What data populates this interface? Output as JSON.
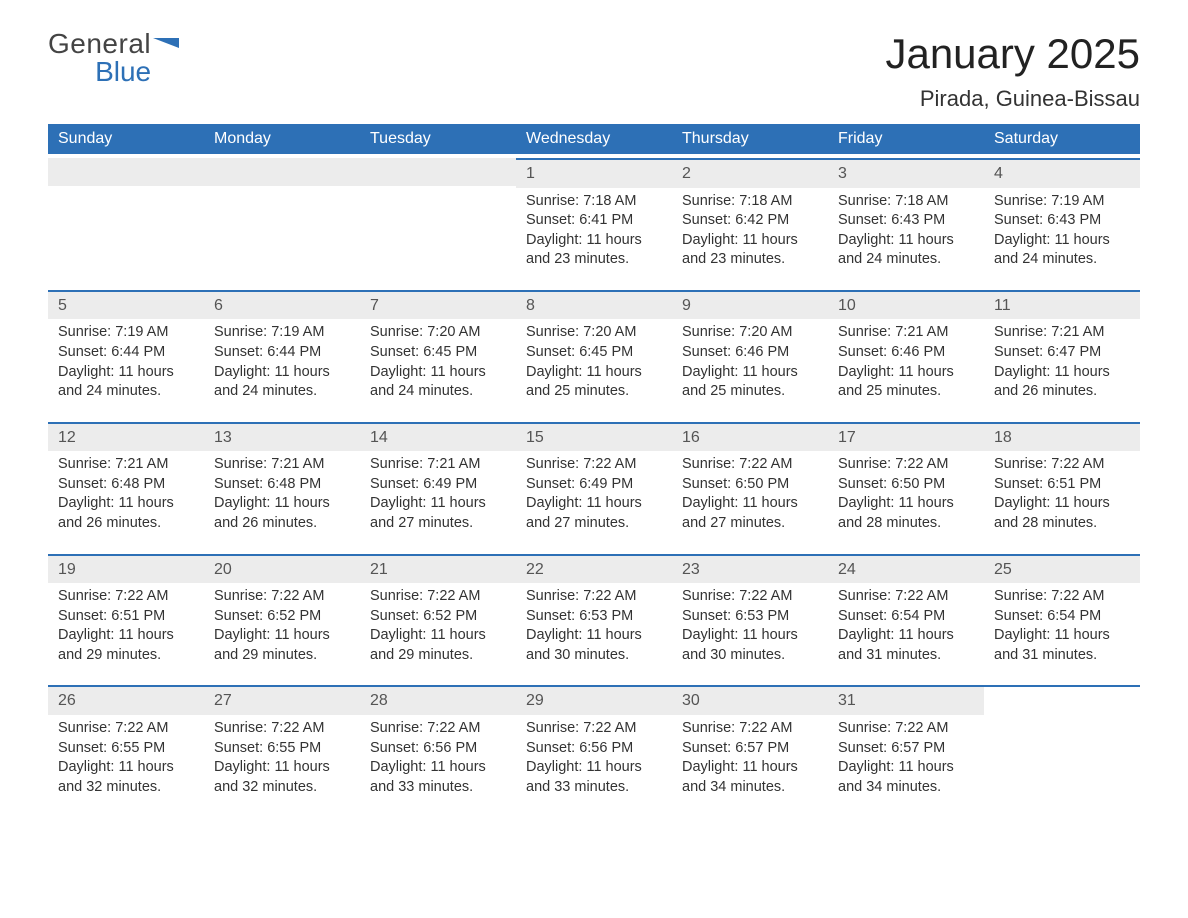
{
  "brand": {
    "line1": "General",
    "line2": "Blue",
    "color1": "#444444",
    "color2": "#2d70b6"
  },
  "title": "January 2025",
  "location": "Pirada, Guinea-Bissau",
  "colors": {
    "header_bg": "#2d70b6",
    "header_fg": "#ffffff",
    "strip_bg": "#ececec",
    "strip_border": "#2d70b6",
    "text": "#333333",
    "page_bg": "#ffffff"
  },
  "typography": {
    "title_fontsize": 42,
    "location_fontsize": 22,
    "dayheader_fontsize": 16,
    "daynum_fontsize": 16,
    "body_fontsize": 14.5
  },
  "layout": {
    "columns": 7,
    "first_weekday_index": 3,
    "days_in_month": 31
  },
  "weekdays": [
    "Sunday",
    "Monday",
    "Tuesday",
    "Wednesday",
    "Thursday",
    "Friday",
    "Saturday"
  ],
  "days": [
    {
      "n": 1,
      "sunrise": "7:18 AM",
      "sunset": "6:41 PM",
      "daylight": "11 hours and 23 minutes."
    },
    {
      "n": 2,
      "sunrise": "7:18 AM",
      "sunset": "6:42 PM",
      "daylight": "11 hours and 23 minutes."
    },
    {
      "n": 3,
      "sunrise": "7:18 AM",
      "sunset": "6:43 PM",
      "daylight": "11 hours and 24 minutes."
    },
    {
      "n": 4,
      "sunrise": "7:19 AM",
      "sunset": "6:43 PM",
      "daylight": "11 hours and 24 minutes."
    },
    {
      "n": 5,
      "sunrise": "7:19 AM",
      "sunset": "6:44 PM",
      "daylight": "11 hours and 24 minutes."
    },
    {
      "n": 6,
      "sunrise": "7:19 AM",
      "sunset": "6:44 PM",
      "daylight": "11 hours and 24 minutes."
    },
    {
      "n": 7,
      "sunrise": "7:20 AM",
      "sunset": "6:45 PM",
      "daylight": "11 hours and 24 minutes."
    },
    {
      "n": 8,
      "sunrise": "7:20 AM",
      "sunset": "6:45 PM",
      "daylight": "11 hours and 25 minutes."
    },
    {
      "n": 9,
      "sunrise": "7:20 AM",
      "sunset": "6:46 PM",
      "daylight": "11 hours and 25 minutes."
    },
    {
      "n": 10,
      "sunrise": "7:21 AM",
      "sunset": "6:46 PM",
      "daylight": "11 hours and 25 minutes."
    },
    {
      "n": 11,
      "sunrise": "7:21 AM",
      "sunset": "6:47 PM",
      "daylight": "11 hours and 26 minutes."
    },
    {
      "n": 12,
      "sunrise": "7:21 AM",
      "sunset": "6:48 PM",
      "daylight": "11 hours and 26 minutes."
    },
    {
      "n": 13,
      "sunrise": "7:21 AM",
      "sunset": "6:48 PM",
      "daylight": "11 hours and 26 minutes."
    },
    {
      "n": 14,
      "sunrise": "7:21 AM",
      "sunset": "6:49 PM",
      "daylight": "11 hours and 27 minutes."
    },
    {
      "n": 15,
      "sunrise": "7:22 AM",
      "sunset": "6:49 PM",
      "daylight": "11 hours and 27 minutes."
    },
    {
      "n": 16,
      "sunrise": "7:22 AM",
      "sunset": "6:50 PM",
      "daylight": "11 hours and 27 minutes."
    },
    {
      "n": 17,
      "sunrise": "7:22 AM",
      "sunset": "6:50 PM",
      "daylight": "11 hours and 28 minutes."
    },
    {
      "n": 18,
      "sunrise": "7:22 AM",
      "sunset": "6:51 PM",
      "daylight": "11 hours and 28 minutes."
    },
    {
      "n": 19,
      "sunrise": "7:22 AM",
      "sunset": "6:51 PM",
      "daylight": "11 hours and 29 minutes."
    },
    {
      "n": 20,
      "sunrise": "7:22 AM",
      "sunset": "6:52 PM",
      "daylight": "11 hours and 29 minutes."
    },
    {
      "n": 21,
      "sunrise": "7:22 AM",
      "sunset": "6:52 PM",
      "daylight": "11 hours and 29 minutes."
    },
    {
      "n": 22,
      "sunrise": "7:22 AM",
      "sunset": "6:53 PM",
      "daylight": "11 hours and 30 minutes."
    },
    {
      "n": 23,
      "sunrise": "7:22 AM",
      "sunset": "6:53 PM",
      "daylight": "11 hours and 30 minutes."
    },
    {
      "n": 24,
      "sunrise": "7:22 AM",
      "sunset": "6:54 PM",
      "daylight": "11 hours and 31 minutes."
    },
    {
      "n": 25,
      "sunrise": "7:22 AM",
      "sunset": "6:54 PM",
      "daylight": "11 hours and 31 minutes."
    },
    {
      "n": 26,
      "sunrise": "7:22 AM",
      "sunset": "6:55 PM",
      "daylight": "11 hours and 32 minutes."
    },
    {
      "n": 27,
      "sunrise": "7:22 AM",
      "sunset": "6:55 PM",
      "daylight": "11 hours and 32 minutes."
    },
    {
      "n": 28,
      "sunrise": "7:22 AM",
      "sunset": "6:56 PM",
      "daylight": "11 hours and 33 minutes."
    },
    {
      "n": 29,
      "sunrise": "7:22 AM",
      "sunset": "6:56 PM",
      "daylight": "11 hours and 33 minutes."
    },
    {
      "n": 30,
      "sunrise": "7:22 AM",
      "sunset": "6:57 PM",
      "daylight": "11 hours and 34 minutes."
    },
    {
      "n": 31,
      "sunrise": "7:22 AM",
      "sunset": "6:57 PM",
      "daylight": "11 hours and 34 minutes."
    }
  ],
  "labels": {
    "sunrise": "Sunrise:",
    "sunset": "Sunset:",
    "daylight": "Daylight:"
  }
}
